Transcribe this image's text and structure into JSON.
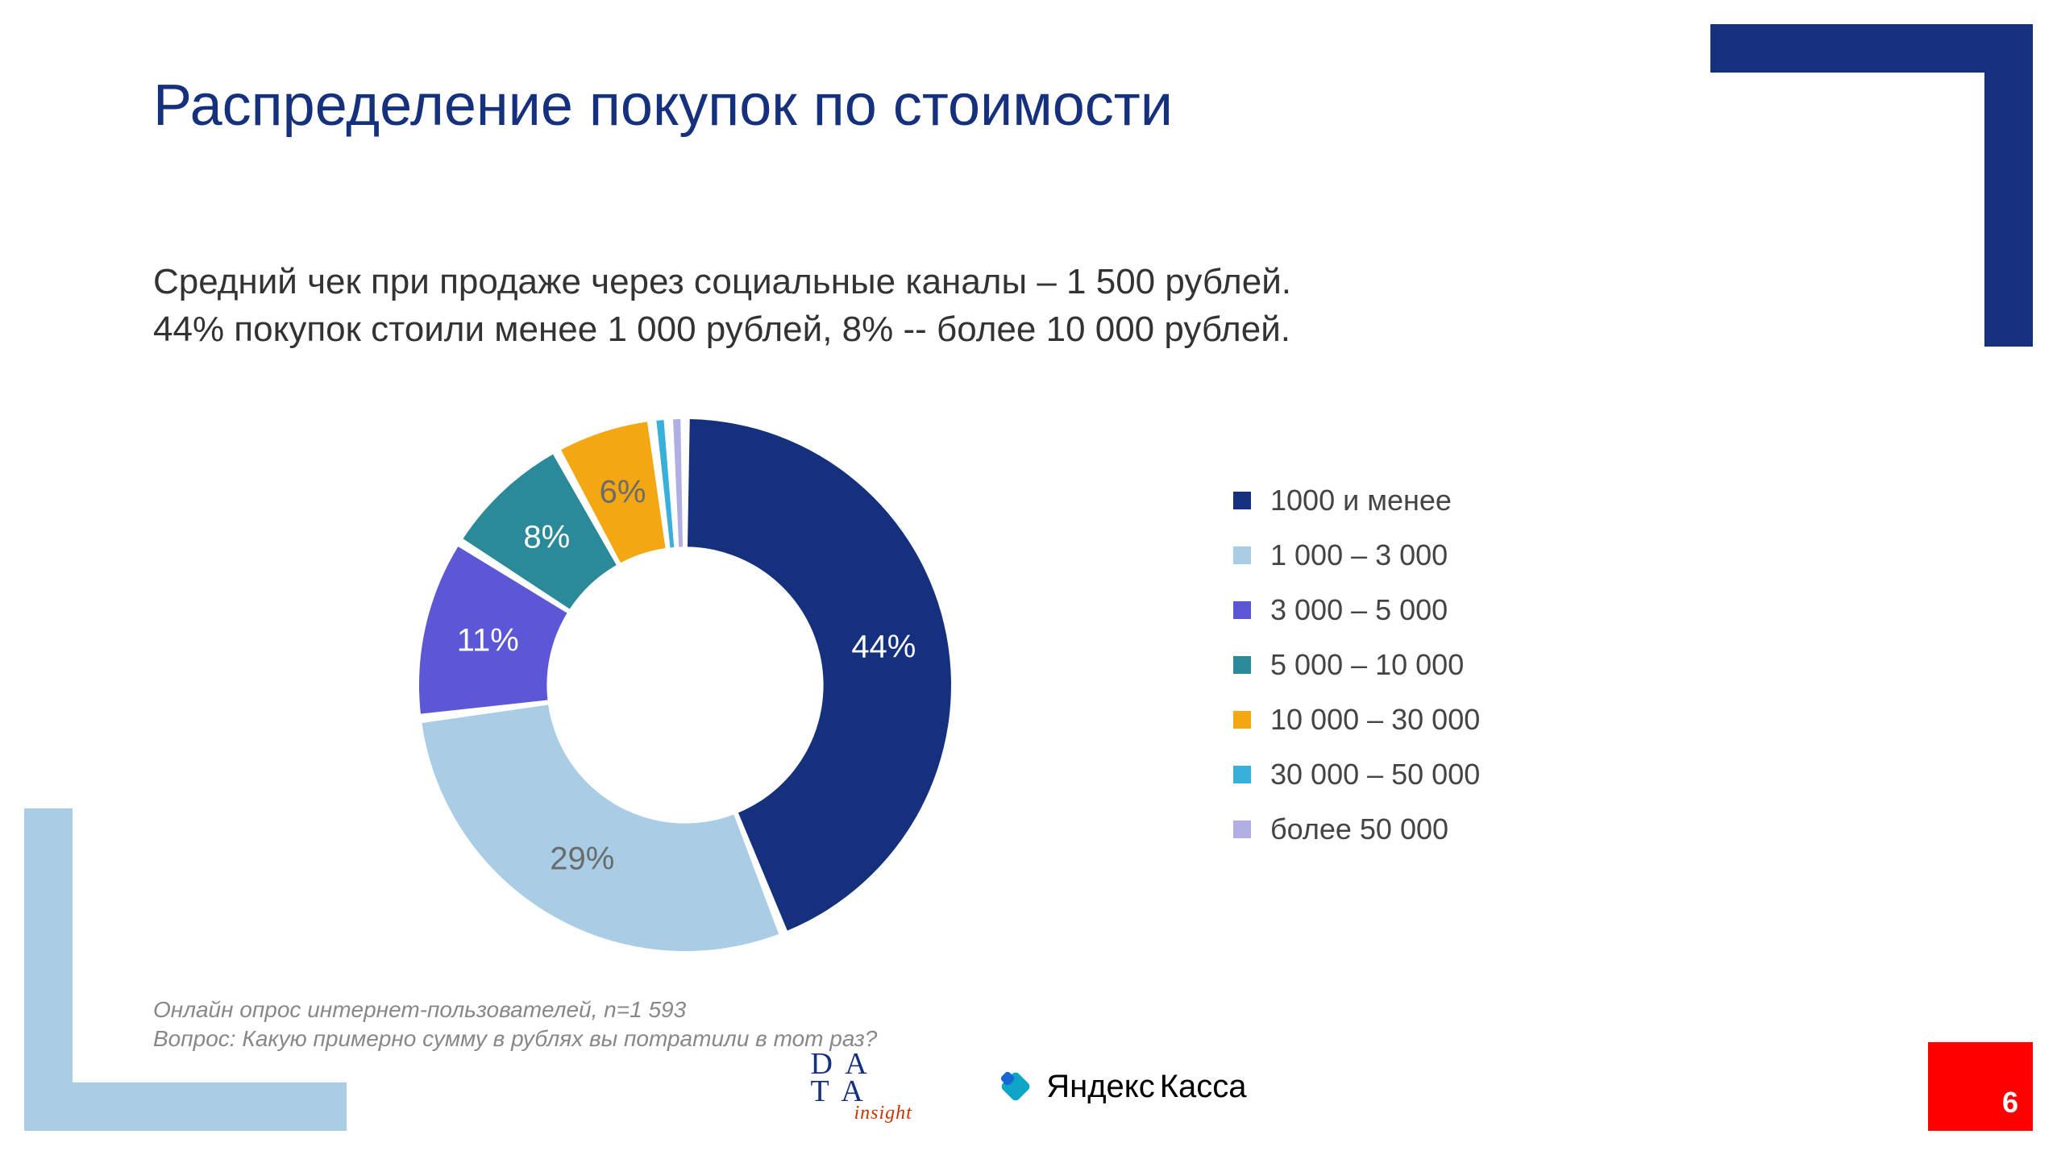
{
  "title": "Распределение покупок по стоимости",
  "subtitle_line1": "Средний чек при продаже через социальные каналы – 1 500 рублей.",
  "subtitle_line2": "44% покупок стоили менее 1 000 рублей, 8% -- более 10 000 рублей.",
  "chart": {
    "type": "donut",
    "inner_radius_ratio": 0.52,
    "background_color": "#ffffff",
    "start_angle_deg": -90,
    "gap_deg": 2,
    "label_fontsize": 40,
    "slices": [
      {
        "label": "1000 и менее",
        "value": 44,
        "color": "#15317e",
        "show_label": true,
        "label_color": "#ffffff",
        "label_text": "44%"
      },
      {
        "label": "1 000 – 3 000",
        "value": 29,
        "color": "#a8cde4",
        "show_label": true,
        "label_color": "#6b6b6b",
        "label_text": "29%"
      },
      {
        "label": "3 000 – 5 000",
        "value": 11,
        "color": "#5b57d6",
        "show_label": true,
        "label_color": "#ffffff",
        "label_text": "11%"
      },
      {
        "label": "5 000 – 10 000",
        "value": 8,
        "color": "#2b8a99",
        "show_label": true,
        "label_color": "#ffffff",
        "label_text": "8%"
      },
      {
        "label": "10 000 – 30 000",
        "value": 6,
        "color": "#f3a712",
        "show_label": true,
        "label_color": "#6b6b6b",
        "label_text": "6%"
      },
      {
        "label": "30 000 – 50 000",
        "value": 1,
        "color": "#39b0d9",
        "show_label": false,
        "label_color": "#ffffff",
        "label_text": ""
      },
      {
        "label": "более 50 000",
        "value": 1,
        "color": "#b0aee2",
        "show_label": false,
        "label_color": "#ffffff",
        "label_text": ""
      }
    ]
  },
  "legend_fontsize": 36,
  "footnote_line1": "Онлайн опрос интернет-пользователей, n=1 593",
  "footnote_line2": "Вопрос: Какую примерно сумму в рублях вы потратили в тот раз?",
  "page_number": "6",
  "logos": {
    "data_insight_top": "D A",
    "data_insight_bottom": "T A",
    "data_insight_sub": "insight",
    "yandex_kassa_1": "Яндекс",
    "yandex_kassa_2": "Касса"
  },
  "accent_colors": {
    "title": "#15317e",
    "corner_tr": "#15317e",
    "corner_bl": "#a8cde4",
    "pagebox": "#ff0000"
  }
}
